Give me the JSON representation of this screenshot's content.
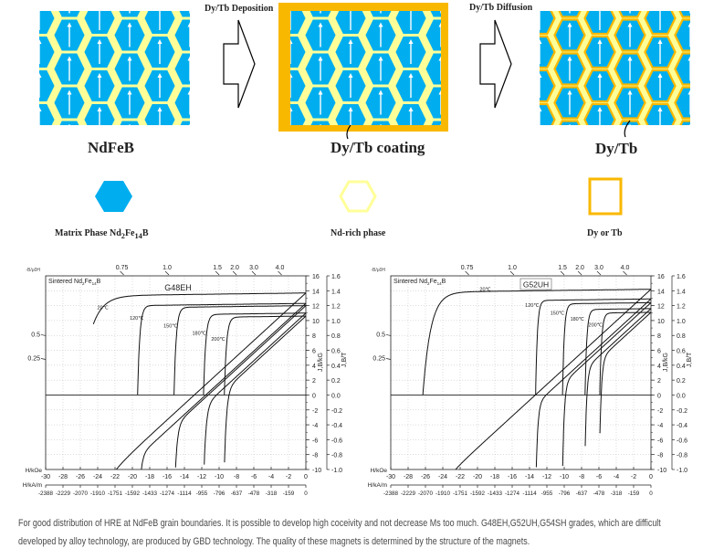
{
  "diagram": {
    "step1_label": "Dy/Tb Deposition",
    "step2_label": "Dy/Tb Diffusion",
    "panel1_title": "NdFeB",
    "panel2_title": "Dy/Tb coating",
    "panel3_title": "Dy/Tb",
    "legend": {
      "matrix": {
        "text": "Matrix Phase Nd",
        "sub1": "2",
        "mid": "Fe",
        "sub2": "14",
        "end": "B"
      },
      "nd_rich": "Nd-rich phase",
      "dy_tb": "Dy or Tb"
    },
    "colors": {
      "matrix": "#00aeef",
      "nd_rich": "#ffff99",
      "dy_tb": "#f9b800",
      "arrow": "#ffffff"
    }
  },
  "chart_data": [
    {
      "type": "line",
      "title": "G48EH",
      "subtitle": {
        "text": "Sintered Nd",
        "sub1": "2",
        "mid": "Fe",
        "sub2": "14",
        "end": "B"
      },
      "xlabel": "H/kOe",
      "xlabel2": "H/kA/m",
      "ylabel": "J,B/kG",
      "ylabel2": "J,B/T",
      "permeance_label": "-B/μ0H",
      "xlim": [
        -30,
        0
      ],
      "ylim": [
        -10,
        16
      ],
      "grid": true,
      "x_ticks": [
        "-30",
        "-28",
        "-26",
        "-24",
        "-22",
        "-20",
        "-18",
        "-16",
        "-14",
        "-12",
        "-10",
        "-8",
        "-6",
        "-4",
        "-2",
        "0"
      ],
      "x2_ticks": [
        "-2388",
        "-2229",
        "-2070",
        "-1910",
        "-1751",
        "-1592",
        "-1433",
        "-1274",
        "-1114",
        "-955",
        "-796",
        "-637",
        "-478",
        "-318",
        "-159",
        "0"
      ],
      "y_ticks": [
        "16",
        "14",
        "12",
        "10",
        "8",
        "6",
        "4",
        "2",
        "0",
        "-2",
        "-4",
        "-6",
        "-8",
        "-10"
      ],
      "y2_ticks": [
        "1.6",
        "1.4",
        "1.2",
        "1.0",
        "0.8",
        "0.6",
        "0.4",
        "0.2",
        "0.0",
        "-0.2",
        "-0.4",
        "-0.6",
        "-0.8",
        "-1.0"
      ],
      "permeance_top": [
        {
          "label": "0.75",
          "h": -21.2
        },
        {
          "label": "1.0",
          "h": -16
        },
        {
          "label": "1.5",
          "h": -10.2
        },
        {
          "label": "2.0",
          "h": -8.2
        },
        {
          "label": "3.0",
          "h": -6.0
        },
        {
          "label": "4.0",
          "h": -3.0
        }
      ],
      "permeance_left": [
        {
          "label": "0.5",
          "b": 8.1
        },
        {
          "label": "0.25",
          "b": 4.9
        }
      ],
      "series": [
        {
          "label": "20℃",
          "br": 13.7,
          "hcj": -26.0,
          "knee_width": 1.2,
          "j_end": -24.5,
          "b_min": -10,
          "label_at": [
            -23.4,
            11.5
          ]
        },
        {
          "label": "120℃",
          "br": 12.3,
          "hcj": -19.4,
          "knee_width": 0.25,
          "b_min": -10,
          "label_at": [
            -19.5,
            10.1
          ]
        },
        {
          "label": "150℃",
          "br": 12.0,
          "hcj": -15.2,
          "knee_width": 0.25,
          "b_min": -10,
          "label_at": [
            -15.6,
            9.1
          ]
        },
        {
          "label": "180℃",
          "br": 11.0,
          "hcj": -11.8,
          "knee_width": 0.25,
          "b_min": -10,
          "label_at": [
            -12.3,
            8.1
          ]
        },
        {
          "label": "200℃",
          "br": 10.6,
          "hcj": -9.4,
          "knee_width": 0.25,
          "b_min": -9.5,
          "label_at": [
            -10.1,
            7.3
          ]
        }
      ]
    },
    {
      "type": "line",
      "title": "G52UH",
      "subtitle": {
        "text": "Sintered Nd",
        "sub1": "2",
        "mid": "Fe",
        "sub2": "14",
        "end": "B"
      },
      "xlabel": "H/kOe",
      "xlabel2": "H/kA/m",
      "ylabel": "J,B/kG",
      "ylabel2": "J,B/T",
      "permeance_label": "-B/μ0H",
      "xlim": [
        -30,
        0
      ],
      "ylim": [
        -10,
        16
      ],
      "grid": true,
      "x_ticks": [
        "-30",
        "-28",
        "-26",
        "-24",
        "-22",
        "-20",
        "-18",
        "-16",
        "-14",
        "-12",
        "-10",
        "-8",
        "-6",
        "-4",
        "-2",
        "0"
      ],
      "x2_ticks": [
        "-2388",
        "-2229",
        "-2070",
        "-1910",
        "-1751",
        "-1592",
        "-1433",
        "-1274",
        "-1114",
        "-955",
        "-796",
        "-637",
        "-478",
        "-318",
        "-159",
        "0"
      ],
      "y_ticks": [
        "16",
        "14",
        "12",
        "10",
        "8",
        "6",
        "4",
        "2",
        "0",
        "-2",
        "-4",
        "-6",
        "-8",
        "-10"
      ],
      "y2_ticks": [
        "1.6",
        "1.4",
        "1.2",
        "1.0",
        "0.8",
        "0.6",
        "0.4",
        "0.2",
        "0.0",
        "-0.2",
        "-0.4",
        "-0.6",
        "-0.8",
        "-1.0"
      ],
      "permeance_top": [
        {
          "label": "0.75",
          "h": -21.2
        },
        {
          "label": "1.0",
          "h": -16
        },
        {
          "label": "1.5",
          "h": -10.2
        },
        {
          "label": "2.0",
          "h": -8.2
        },
        {
          "label": "3.0",
          "h": -6.0
        },
        {
          "label": "4.0",
          "h": -3.0
        }
      ],
      "permeance_left": [
        {
          "label": "0.5",
          "b": 8.1
        },
        {
          "label": "0.25",
          "b": 4.9
        }
      ],
      "series": [
        {
          "label": "20℃",
          "br": 14.2,
          "hcj": -26.3,
          "knee_width": 0.9,
          "b_min": -10,
          "label_at": [
            -19.1,
            14.0
          ]
        },
        {
          "label": "120℃",
          "br": 12.9,
          "hcj": -13.3,
          "knee_width": 0.2,
          "b_min": -10,
          "label_at": [
            -13.7,
            11.8
          ]
        },
        {
          "label": "150℃",
          "br": 12.4,
          "hcj": -10.2,
          "knee_width": 0.2,
          "b_min": -10,
          "label_at": [
            -10.8,
            10.8
          ]
        },
        {
          "label": "180℃",
          "br": 11.6,
          "hcj": -7.6,
          "knee_width": 0.2,
          "b_min": -7.4,
          "label_at": [
            -8.5,
            10.0
          ]
        },
        {
          "label": "200℃",
          "br": 11.1,
          "hcj": -5.9,
          "knee_width": 0.2,
          "b_min": -5.8,
          "label_at": [
            -6.4,
            9.2
          ]
        }
      ]
    }
  ],
  "caption": {
    "line1": "For good distribution of HRE at NdFeB grain boundaries. It is possible to develop high coceivity and not decrease Ms too much. G48EH,G52UH,G54SH grades, which are difficult",
    "line2": "developed by alloy technology, are produced by GBD technology. The quality of these magnets is determined by the structure of the magnets."
  }
}
